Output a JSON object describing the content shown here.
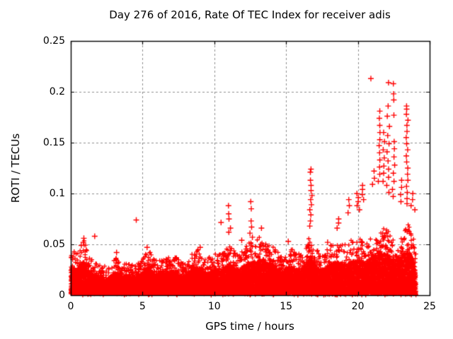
{
  "chart_data": {
    "type": "scatter",
    "title": "Day 276 of 2016, Rate Of TEC Index for receiver adis",
    "xlabel": "GPS time / hours",
    "ylabel": "ROTI / TECUs",
    "day_of_year": 276,
    "year": 2016,
    "receiver": "adis",
    "series_name": "ROTI",
    "xlim": [
      0,
      25
    ],
    "ylim": [
      0,
      0.25
    ],
    "x_ticks": [
      0,
      5,
      10,
      15,
      20,
      25
    ],
    "x_tick_labels": [
      "0",
      "5",
      "10",
      "15",
      "20",
      "25"
    ],
    "y_ticks": [
      0,
      0.05,
      0.1,
      0.15,
      0.2,
      0.25
    ],
    "y_tick_labels": [
      "0",
      "0.05",
      "0.1",
      "0.15",
      "0.2",
      "0.25"
    ],
    "grid": {
      "visible": true,
      "style": "dashed",
      "color": "#8c8c8c"
    },
    "marker": {
      "shape": "plus",
      "color": "#ff0000"
    },
    "background_color": "#ffffff",
    "axis_color": "#000000",
    "data_time_range_hours": [
      0,
      24.05
    ],
    "band_envelope": [
      [
        0.0,
        0.046
      ],
      [
        0.4,
        0.041
      ],
      [
        0.7,
        0.05
      ],
      [
        0.95,
        0.057
      ],
      [
        1.2,
        0.038
      ],
      [
        1.7,
        0.033
      ],
      [
        2.2,
        0.03
      ],
      [
        2.7,
        0.029
      ],
      [
        3.1,
        0.038
      ],
      [
        3.6,
        0.03
      ],
      [
        4.1,
        0.032
      ],
      [
        4.6,
        0.031
      ],
      [
        5.0,
        0.037
      ],
      [
        5.4,
        0.046
      ],
      [
        5.8,
        0.035
      ],
      [
        6.3,
        0.034
      ],
      [
        6.8,
        0.038
      ],
      [
        7.2,
        0.04
      ],
      [
        7.6,
        0.034
      ],
      [
        8.0,
        0.033
      ],
      [
        8.5,
        0.042
      ],
      [
        9.0,
        0.047
      ],
      [
        9.5,
        0.036
      ],
      [
        10.0,
        0.041
      ],
      [
        10.5,
        0.04
      ],
      [
        11.0,
        0.05
      ],
      [
        11.5,
        0.042
      ],
      [
        12.0,
        0.046
      ],
      [
        12.5,
        0.053
      ],
      [
        12.9,
        0.055
      ],
      [
        13.2,
        0.058
      ],
      [
        13.8,
        0.052
      ],
      [
        14.2,
        0.048
      ],
      [
        14.6,
        0.038
      ],
      [
        15.0,
        0.044
      ],
      [
        15.3,
        0.047
      ],
      [
        15.7,
        0.042
      ],
      [
        16.0,
        0.04
      ],
      [
        16.4,
        0.05
      ],
      [
        16.7,
        0.062
      ],
      [
        17.1,
        0.047
      ],
      [
        17.5,
        0.041
      ],
      [
        18.0,
        0.048
      ],
      [
        18.5,
        0.057
      ],
      [
        19.0,
        0.05
      ],
      [
        19.5,
        0.054
      ],
      [
        20.0,
        0.059
      ],
      [
        20.5,
        0.052
      ],
      [
        21.0,
        0.064
      ],
      [
        21.5,
        0.07
      ],
      [
        22.0,
        0.067
      ],
      [
        22.4,
        0.058
      ],
      [
        22.8,
        0.062
      ],
      [
        23.2,
        0.068
      ],
      [
        23.6,
        0.07
      ],
      [
        23.9,
        0.055
      ],
      [
        24.05,
        0.042
      ]
    ],
    "spike_points": [
      [
        0.78,
        0.049
      ],
      [
        0.88,
        0.052
      ],
      [
        0.93,
        0.056
      ],
      [
        1.63,
        0.058
      ],
      [
        3.15,
        0.042
      ],
      [
        4.59,
        0.074
      ],
      [
        5.35,
        0.047
      ],
      [
        9.05,
        0.047
      ],
      [
        10.49,
        0.0715
      ],
      [
        11.02,
        0.088
      ],
      [
        11.05,
        0.08
      ],
      [
        11.0,
        0.075
      ],
      [
        11.08,
        0.066
      ],
      [
        10.98,
        0.062
      ],
      [
        11.9,
        0.054
      ],
      [
        12.55,
        0.092
      ],
      [
        12.6,
        0.085
      ],
      [
        12.58,
        0.073
      ],
      [
        12.62,
        0.067
      ],
      [
        12.52,
        0.061
      ],
      [
        12.7,
        0.057
      ],
      [
        13.3,
        0.066
      ],
      [
        15.15,
        0.053
      ],
      [
        16.7,
        0.124
      ],
      [
        16.73,
        0.121
      ],
      [
        16.68,
        0.113
      ],
      [
        16.75,
        0.108
      ],
      [
        16.7,
        0.103
      ],
      [
        16.78,
        0.098
      ],
      [
        16.72,
        0.094
      ],
      [
        16.8,
        0.089
      ],
      [
        16.65,
        0.084
      ],
      [
        16.75,
        0.079
      ],
      [
        16.7,
        0.073
      ],
      [
        16.68,
        0.068
      ],
      [
        17.9,
        0.052
      ],
      [
        18.65,
        0.075
      ],
      [
        18.7,
        0.071
      ],
      [
        18.6,
        0.066
      ],
      [
        19.35,
        0.094
      ],
      [
        19.38,
        0.088
      ],
      [
        19.3,
        0.081
      ],
      [
        19.95,
        0.1
      ],
      [
        20.0,
        0.096
      ],
      [
        20.05,
        0.092
      ],
      [
        19.9,
        0.088
      ],
      [
        20.1,
        0.084
      ],
      [
        20.3,
        0.108
      ],
      [
        20.35,
        0.104
      ],
      [
        20.28,
        0.099
      ],
      [
        20.4,
        0.094
      ],
      [
        20.9,
        0.213
      ],
      [
        21.1,
        0.122
      ],
      [
        21.15,
        0.115
      ],
      [
        21.05,
        0.109
      ],
      [
        21.5,
        0.181
      ],
      [
        21.52,
        0.174
      ],
      [
        21.48,
        0.167
      ],
      [
        21.55,
        0.16
      ],
      [
        21.5,
        0.153
      ],
      [
        21.53,
        0.147
      ],
      [
        21.47,
        0.14
      ],
      [
        21.5,
        0.133
      ],
      [
        21.55,
        0.126
      ],
      [
        21.5,
        0.119
      ],
      [
        21.45,
        0.112
      ],
      [
        21.8,
        0.16
      ],
      [
        21.82,
        0.151
      ],
      [
        21.78,
        0.143
      ],
      [
        21.85,
        0.135
      ],
      [
        21.8,
        0.127
      ],
      [
        21.83,
        0.12
      ],
      [
        21.77,
        0.112
      ],
      [
        22.1,
        0.209
      ],
      [
        22.12,
        0.186
      ],
      [
        22.08,
        0.176
      ],
      [
        22.15,
        0.166
      ],
      [
        22.1,
        0.157
      ],
      [
        22.13,
        0.149
      ],
      [
        22.07,
        0.141
      ],
      [
        22.1,
        0.132
      ],
      [
        22.15,
        0.124
      ],
      [
        22.1,
        0.116
      ],
      [
        22.05,
        0.108
      ],
      [
        22.12,
        0.101
      ],
      [
        22.5,
        0.208
      ],
      [
        22.52,
        0.198
      ],
      [
        22.5,
        0.192
      ],
      [
        22.48,
        0.177
      ],
      [
        22.53,
        0.151
      ],
      [
        22.5,
        0.144
      ],
      [
        22.47,
        0.136
      ],
      [
        22.52,
        0.128
      ],
      [
        22.5,
        0.12
      ],
      [
        22.55,
        0.112
      ],
      [
        22.45,
        0.104
      ],
      [
        22.5,
        0.097
      ],
      [
        23.0,
        0.113
      ],
      [
        23.03,
        0.106
      ],
      [
        22.97,
        0.099
      ],
      [
        23.05,
        0.092
      ],
      [
        23.42,
        0.186
      ],
      [
        23.44,
        0.183
      ],
      [
        23.4,
        0.178
      ],
      [
        23.45,
        0.172
      ],
      [
        23.42,
        0.167
      ],
      [
        23.46,
        0.161
      ],
      [
        23.4,
        0.155
      ],
      [
        23.43,
        0.149
      ],
      [
        23.47,
        0.143
      ],
      [
        23.41,
        0.137
      ],
      [
        23.44,
        0.131
      ],
      [
        23.48,
        0.125
      ],
      [
        23.42,
        0.119
      ],
      [
        23.45,
        0.113
      ],
      [
        23.39,
        0.107
      ],
      [
        23.43,
        0.101
      ],
      [
        23.46,
        0.095
      ],
      [
        23.42,
        0.09
      ],
      [
        23.78,
        0.1
      ],
      [
        23.8,
        0.094
      ],
      [
        23.75,
        0.088
      ],
      [
        24.0,
        0.084
      ]
    ]
  }
}
